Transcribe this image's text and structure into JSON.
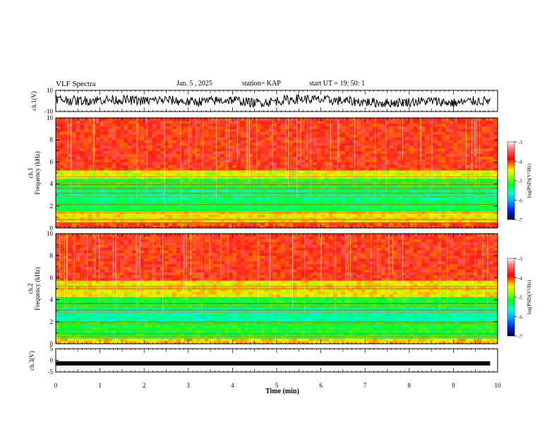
{
  "header": {
    "title": "VLF Spectra",
    "date": "Jan. 5 , 2025",
    "station": "station= KAP",
    "start": "start UT =   19: 50: 1"
  },
  "chart_data": [
    {
      "type": "line",
      "panel": "ch1-waveform",
      "ylabel": "ch.1(V)",
      "ylim": [
        -10,
        10
      ],
      "yticks": [
        "10",
        "-10"
      ],
      "xlim": [
        0,
        10
      ],
      "x": [
        0,
        0.5,
        1,
        1.5,
        2,
        2.5,
        3,
        3.5,
        4,
        4.5,
        5,
        5.5,
        6,
        6.5,
        7,
        7.5,
        8,
        8.5,
        9,
        9.5,
        9.83
      ],
      "values": [
        2,
        0,
        1,
        1,
        0,
        1,
        -1,
        0,
        1,
        -2,
        0,
        2,
        1,
        0,
        -1,
        -2,
        -1,
        0,
        -2,
        0,
        0
      ]
    },
    {
      "type": "heatmap",
      "panel": "ch1-spectrogram",
      "ylabel_line1": "ch.1",
      "ylabel_line2": "Frequency (kHz)",
      "ylim": [
        0,
        10
      ],
      "yticks": [
        "0",
        "2",
        "4",
        "6",
        "8",
        "10"
      ],
      "bands": [
        {
          "from": 0,
          "to": 0.6,
          "level": -3.8
        },
        {
          "from": 0.6,
          "to": 1.4,
          "level": -4.3
        },
        {
          "from": 1.4,
          "to": 2.4,
          "level": -5.1
        },
        {
          "from": 2.4,
          "to": 3.4,
          "level": -5.3
        },
        {
          "from": 3.4,
          "to": 4.6,
          "level": -5.0
        },
        {
          "from": 4.6,
          "to": 5.3,
          "level": -4.4
        },
        {
          "from": 5.3,
          "to": 10,
          "level": -3.7
        }
      ],
      "colorbar": {
        "label": "log(PSD)(V²/Hz)",
        "ticks": [
          "-3",
          "-4",
          "-5",
          "-6",
          "-7"
        ],
        "range": [
          -7,
          -3
        ]
      }
    },
    {
      "type": "heatmap",
      "panel": "ch2-spectrogram",
      "ylabel_line1": "ch.2",
      "ylabel_line2": "Frequency (kHz)",
      "ylim": [
        0,
        10
      ],
      "yticks": [
        "0",
        "2",
        "4",
        "6",
        "8",
        "10"
      ],
      "bands": [
        {
          "from": 0,
          "to": 0.6,
          "level": -4.2
        },
        {
          "from": 0.6,
          "to": 2.0,
          "level": -5.0
        },
        {
          "from": 2.0,
          "to": 3.2,
          "level": -5.4
        },
        {
          "from": 3.2,
          "to": 4.2,
          "level": -5.0
        },
        {
          "from": 4.2,
          "to": 5.8,
          "level": -4.3
        },
        {
          "from": 5.8,
          "to": 10,
          "level": -3.7
        }
      ],
      "colorbar": {
        "label": "log(PSD)(V²/Hz)",
        "ticks": [
          "-3",
          "-4",
          "-5",
          "-6",
          "-7"
        ],
        "range": [
          -7,
          -3
        ]
      }
    },
    {
      "type": "line",
      "panel": "ch3-waveform",
      "ylabel": "ch.3(V)",
      "ylim": [
        -5,
        5
      ],
      "yticks": [
        "5",
        "0",
        "-5"
      ],
      "xlim": [
        0,
        10
      ],
      "x": [
        0,
        9.83
      ],
      "values": [
        -1.3,
        -1.3
      ]
    }
  ],
  "xaxis": {
    "label": "Time (min)",
    "ticks": [
      "0",
      "1",
      "2",
      "3",
      "4",
      "5",
      "6",
      "7",
      "8",
      "9",
      "10"
    ],
    "range": [
      0,
      10
    ]
  }
}
